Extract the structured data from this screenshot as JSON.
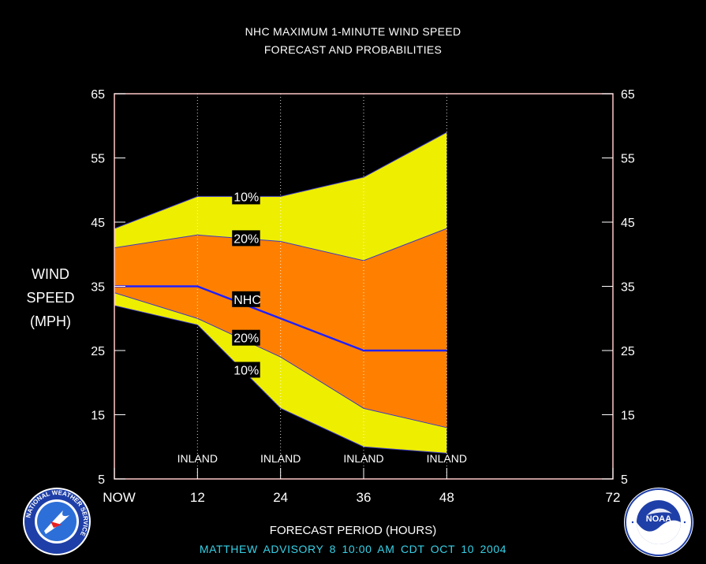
{
  "title_line1": "NHC MAXIMUM 1-MINUTE WIND SPEED",
  "title_line2": "FORECAST AND PROBABILITIES",
  "ylabel_lines": [
    "WIND",
    "SPEED",
    "(MPH)"
  ],
  "xlabel": "FORECAST PERIOD (HOURS)",
  "advisory": "MATTHEW   ADVISORY  8 10:00 AM  CDT  OCT 10  2004",
  "logos": {
    "left": {
      "name": "national-weather-service-logo",
      "text": "NATIONAL WEATHER SERVICE"
    },
    "right": {
      "name": "noaa-logo",
      "text": "NOAA"
    }
  },
  "colors": {
    "background": "#000000",
    "band_10": "#eeee00",
    "band_20": "#ff8000",
    "nhc_line": "#2020ff",
    "advisory_text": "#36d2e8"
  },
  "chart_data": {
    "type": "area",
    "x": [
      0,
      12,
      24,
      36,
      48
    ],
    "xlim": [
      0,
      72
    ],
    "x_tick_values": [
      0,
      12,
      24,
      36,
      48,
      72
    ],
    "x_tick_labels": [
      "NOW",
      "12",
      "24",
      "36",
      "48",
      "72"
    ],
    "ylim": [
      5,
      65
    ],
    "y_ticks": [
      5,
      15,
      25,
      35,
      45,
      55,
      65
    ],
    "vertical_grid_x": [
      12,
      24,
      36,
      48
    ],
    "series": [
      {
        "name": "10%",
        "band": "upper",
        "values": [
          44,
          49,
          49,
          52,
          59
        ]
      },
      {
        "name": "20%",
        "band": "upper",
        "values": [
          41,
          43,
          42,
          39,
          44
        ]
      },
      {
        "name": "NHC",
        "values": [
          35,
          35,
          30,
          25,
          25
        ]
      },
      {
        "name": "20%",
        "band": "lower",
        "values": [
          34,
          30,
          24,
          16,
          13
        ]
      },
      {
        "name": "10%",
        "band": "lower",
        "values": [
          32,
          29,
          16,
          10,
          9
        ]
      }
    ],
    "series_labels": [
      {
        "text": "10%",
        "x": 17,
        "y": 49
      },
      {
        "text": "20%",
        "x": 17,
        "y": 42.5
      },
      {
        "text": "NHC",
        "x": 17,
        "y": 33
      },
      {
        "text": "20%",
        "x": 17,
        "y": 27
      },
      {
        "text": "10%",
        "x": 17,
        "y": 22
      }
    ],
    "annotations": [
      {
        "text": "INLAND",
        "x": 12
      },
      {
        "text": "INLAND",
        "x": 24
      },
      {
        "text": "INLAND",
        "x": 36
      },
      {
        "text": "INLAND",
        "x": 48
      }
    ]
  }
}
